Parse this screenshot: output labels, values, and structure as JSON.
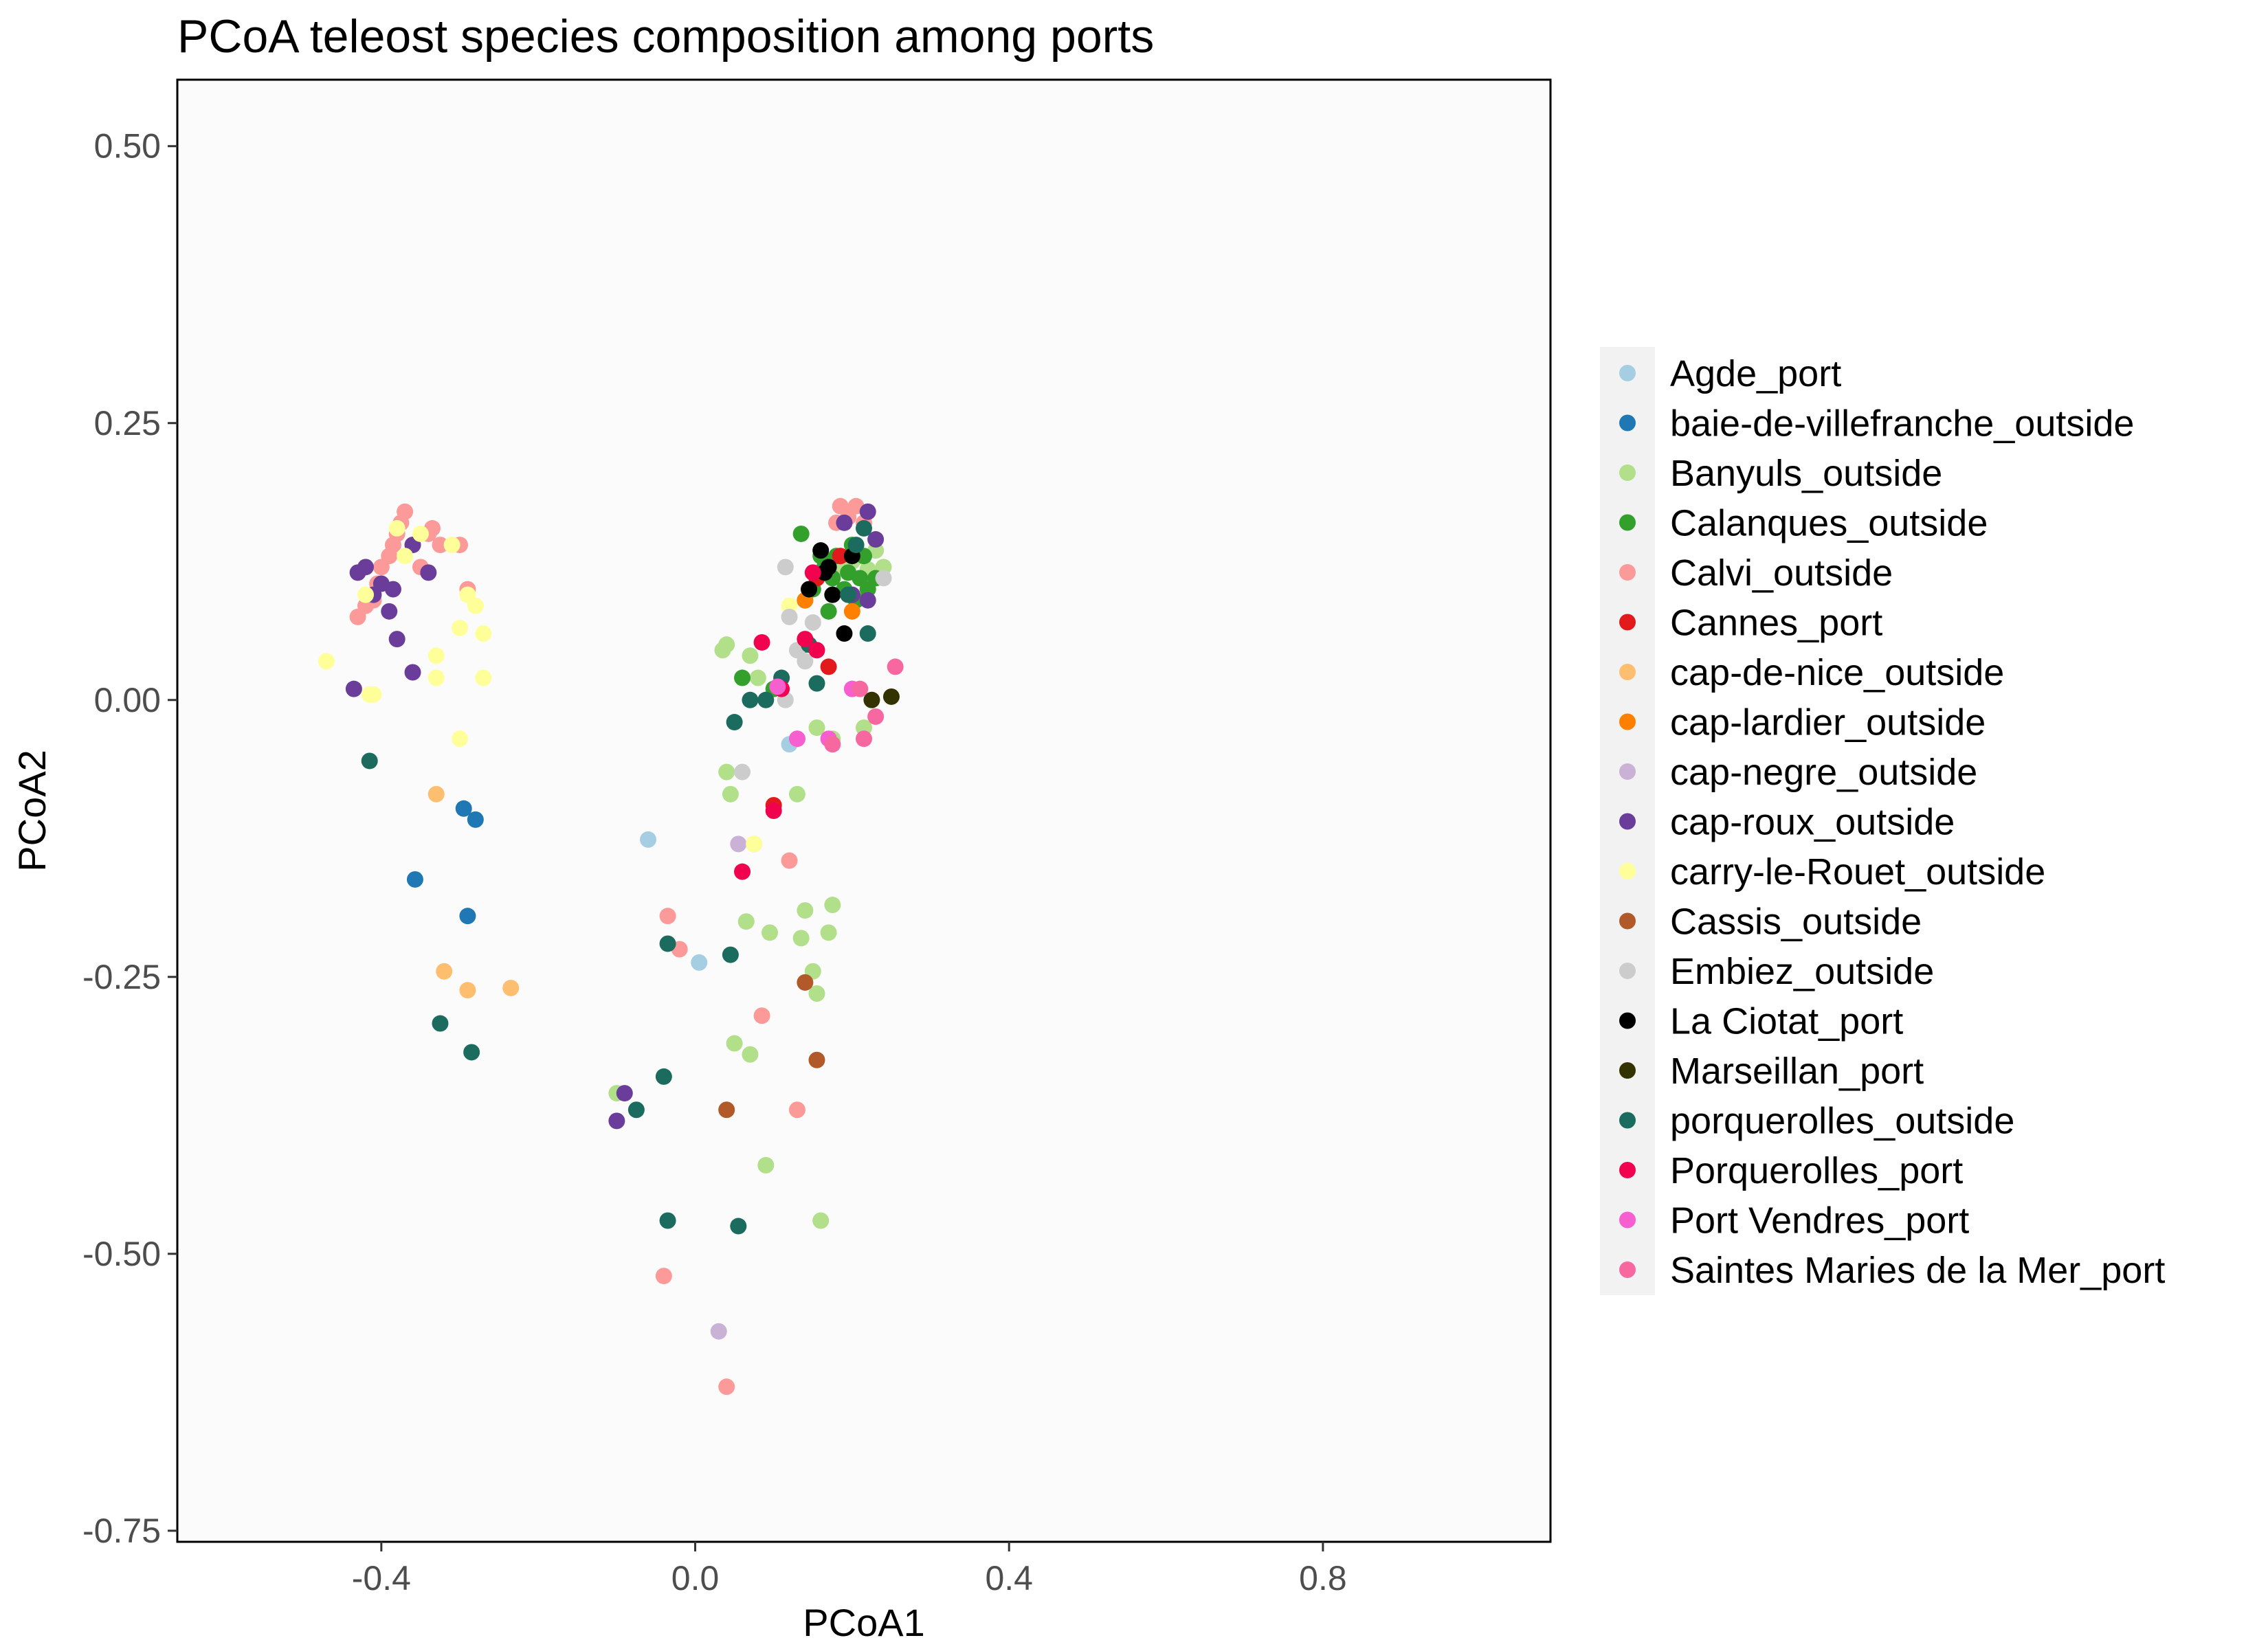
{
  "chart_data": {
    "type": "scatter",
    "title": "PCoA teleost species composition among ports",
    "xlabel": "PCoA1",
    "ylabel": "PCoA2",
    "xlim": [
      -0.66,
      1.09
    ],
    "ylim": [
      -0.76,
      0.56
    ],
    "x_ticks": [
      {
        "v": -0.4,
        "label": "-0.4"
      },
      {
        "v": 0.0,
        "label": "0.0"
      },
      {
        "v": 0.4,
        "label": "0.4"
      },
      {
        "v": 0.8,
        "label": "0.8"
      }
    ],
    "y_ticks": [
      {
        "v": 0.5,
        "label": "0.50"
      },
      {
        "v": 0.25,
        "label": "0.25"
      },
      {
        "v": 0.0,
        "label": "0.00"
      },
      {
        "v": -0.25,
        "label": "-0.25"
      },
      {
        "v": -0.5,
        "label": "-0.50"
      },
      {
        "v": -0.75,
        "label": "-0.75"
      }
    ],
    "grid": false,
    "legend_position": "right",
    "series": [
      {
        "name": "Agde_port",
        "color": "#a6cee3",
        "points": [
          [
            -0.06,
            -0.126
          ],
          [
            0.005,
            -0.237
          ],
          [
            0.12,
            -0.04
          ]
        ]
      },
      {
        "name": "baie-de-villefranche_outside",
        "color": "#1f78b4",
        "points": [
          [
            -0.357,
            -0.162
          ],
          [
            -0.295,
            -0.098
          ],
          [
            -0.28,
            -0.108
          ],
          [
            -0.29,
            -0.195
          ]
        ]
      },
      {
        "name": "Banyuls_outside",
        "color": "#b2df8a",
        "points": [
          [
            0.035,
            0.045
          ],
          [
            0.04,
            0.05
          ],
          [
            0.07,
            0.04
          ],
          [
            0.08,
            0.02
          ],
          [
            0.04,
            -0.065
          ],
          [
            0.045,
            -0.085
          ],
          [
            0.075,
            -0.13
          ],
          [
            0.065,
            -0.2
          ],
          [
            0.095,
            -0.21
          ],
          [
            0.135,
            -0.215
          ],
          [
            0.14,
            -0.19
          ],
          [
            0.15,
            -0.245
          ],
          [
            0.155,
            -0.265
          ],
          [
            0.17,
            -0.21
          ],
          [
            0.175,
            -0.185
          ],
          [
            0.13,
            -0.085
          ],
          [
            0.13,
            -0.035
          ],
          [
            0.155,
            -0.025
          ],
          [
            0.175,
            -0.035
          ],
          [
            0.215,
            -0.025
          ],
          [
            0.05,
            -0.31
          ],
          [
            0.07,
            -0.32
          ],
          [
            -0.1,
            -0.355
          ],
          [
            0.09,
            -0.42
          ],
          [
            0.16,
            -0.47
          ],
          [
            0.2,
            0.125
          ],
          [
            0.21,
            0.13
          ],
          [
            0.22,
            0.118
          ],
          [
            0.23,
            0.135
          ],
          [
            0.24,
            0.12
          ],
          [
            0.185,
            0.12
          ]
        ]
      },
      {
        "name": "Calanques_outside",
        "color": "#33a02c",
        "points": [
          [
            0.135,
            0.15
          ],
          [
            0.15,
            0.1
          ],
          [
            0.155,
            0.11
          ],
          [
            0.165,
            0.12
          ],
          [
            0.175,
            0.11
          ],
          [
            0.18,
            0.13
          ],
          [
            0.19,
            0.1
          ],
          [
            0.195,
            0.115
          ],
          [
            0.205,
            0.09
          ],
          [
            0.21,
            0.11
          ],
          [
            0.215,
            0.13
          ],
          [
            0.22,
            0.1
          ],
          [
            0.2,
            0.14
          ],
          [
            0.16,
            0.13
          ],
          [
            0.14,
            0.09
          ],
          [
            0.17,
            0.08
          ],
          [
            0.06,
            0.02
          ],
          [
            0.1,
            0.01
          ],
          [
            0.14,
            0.05
          ],
          [
            0.23,
            0.11
          ]
        ]
      },
      {
        "name": "Calvi_outside",
        "color": "#fb9a99",
        "points": [
          [
            -0.39,
            0.13
          ],
          [
            -0.385,
            0.14
          ],
          [
            -0.38,
            0.15
          ],
          [
            -0.375,
            0.16
          ],
          [
            -0.37,
            0.17
          ],
          [
            -0.36,
            0.14
          ],
          [
            -0.35,
            0.12
          ],
          [
            -0.34,
            0.15
          ],
          [
            -0.4,
            0.12
          ],
          [
            -0.405,
            0.105
          ],
          [
            -0.41,
            0.09
          ],
          [
            -0.42,
            0.085
          ],
          [
            -0.43,
            0.075
          ],
          [
            -0.335,
            0.155
          ],
          [
            -0.325,
            0.14
          ],
          [
            -0.29,
            0.1
          ],
          [
            -0.3,
            0.14
          ],
          [
            -0.035,
            -0.195
          ],
          [
            -0.02,
            -0.225
          ],
          [
            -0.04,
            -0.52
          ],
          [
            0.04,
            -0.62
          ],
          [
            0.085,
            -0.285
          ],
          [
            0.12,
            -0.145
          ],
          [
            0.13,
            -0.37
          ],
          [
            0.185,
            0.175
          ],
          [
            0.195,
            0.165
          ],
          [
            0.205,
            0.175
          ],
          [
            0.215,
            0.16
          ],
          [
            0.18,
            0.16
          ]
        ]
      },
      {
        "name": "Cannes_port",
        "color": "#e31a1c",
        "points": [
          [
            0.1,
            -0.095
          ],
          [
            0.145,
            0.1
          ],
          [
            0.155,
            0.11
          ],
          [
            0.17,
            0.03
          ],
          [
            0.185,
            0.13
          ]
        ]
      },
      {
        "name": "cap-de-nice_outside",
        "color": "#fdbf6f",
        "points": [
          [
            -0.33,
            -0.085
          ],
          [
            -0.32,
            -0.245
          ],
          [
            -0.29,
            -0.262
          ],
          [
            -0.235,
            -0.26
          ]
        ]
      },
      {
        "name": "cap-lardier_outside",
        "color": "#ff7f00",
        "points": [
          [
            0.14,
            0.09
          ],
          [
            0.2,
            0.08
          ]
        ]
      },
      {
        "name": "cap-negre_outside",
        "color": "#cab2d6",
        "points": [
          [
            0.055,
            -0.13
          ],
          [
            0.03,
            -0.57
          ]
        ]
      },
      {
        "name": "cap-roux_outside",
        "color": "#6a3d9a",
        "points": [
          [
            -0.43,
            0.115
          ],
          [
            -0.42,
            0.12
          ],
          [
            -0.41,
            0.095
          ],
          [
            -0.4,
            0.105
          ],
          [
            -0.39,
            0.08
          ],
          [
            -0.385,
            0.1
          ],
          [
            -0.36,
            0.14
          ],
          [
            -0.34,
            0.115
          ],
          [
            -0.38,
            0.055
          ],
          [
            -0.36,
            0.025
          ],
          [
            -0.435,
            0.01
          ],
          [
            -0.1,
            -0.38
          ],
          [
            -0.09,
            -0.355
          ],
          [
            0.2,
            0.095
          ],
          [
            0.22,
            0.17
          ],
          [
            0.23,
            0.145
          ],
          [
            0.19,
            0.16
          ],
          [
            0.22,
            0.09
          ]
        ]
      },
      {
        "name": "carry-le-Rouet_outside",
        "color": "#ffff99",
        "points": [
          [
            -0.47,
            0.035
          ],
          [
            -0.42,
            0.095
          ],
          [
            -0.415,
            0.005
          ],
          [
            -0.41,
            0.005
          ],
          [
            -0.38,
            0.155
          ],
          [
            -0.37,
            0.13
          ],
          [
            -0.35,
            0.15
          ],
          [
            -0.33,
            0.04
          ],
          [
            -0.33,
            0.02
          ],
          [
            -0.31,
            0.14
          ],
          [
            -0.3,
            0.065
          ],
          [
            -0.29,
            0.095
          ],
          [
            -0.28,
            0.085
          ],
          [
            -0.27,
            0.06
          ],
          [
            -0.27,
            0.02
          ],
          [
            -0.3,
            -0.035
          ],
          [
            0.075,
            -0.13
          ],
          [
            0.12,
            0.085
          ]
        ]
      },
      {
        "name": "Cassis_outside",
        "color": "#b15928",
        "points": [
          [
            0.04,
            -0.37
          ],
          [
            0.14,
            -0.255
          ],
          [
            0.155,
            -0.325
          ]
        ]
      },
      {
        "name": "Embiez_outside",
        "color": "#cccccc",
        "points": [
          [
            0.115,
            0.12
          ],
          [
            0.12,
            0.075
          ],
          [
            0.13,
            0.045
          ],
          [
            0.14,
            0.035
          ],
          [
            0.115,
            0.0
          ],
          [
            0.15,
            0.07
          ],
          [
            0.06,
            -0.065
          ],
          [
            0.24,
            0.11
          ]
        ]
      },
      {
        "name": "La Ciotat_port",
        "color": "#000000",
        "points": [
          [
            0.145,
            0.1
          ],
          [
            0.16,
            0.135
          ],
          [
            0.17,
            0.12
          ],
          [
            0.175,
            0.095
          ],
          [
            0.19,
            0.06
          ],
          [
            0.2,
            0.13
          ],
          [
            0.165,
            0.115
          ]
        ]
      },
      {
        "name": "Marseillan_port",
        "color": "#333300",
        "points": [
          [
            0.225,
            0.0
          ],
          [
            0.25,
            0.003
          ]
        ]
      },
      {
        "name": "porquerolles_outside",
        "color": "#1b6b5e",
        "points": [
          [
            -0.415,
            -0.055
          ],
          [
            -0.325,
            -0.292
          ],
          [
            -0.285,
            -0.318
          ],
          [
            -0.075,
            -0.37
          ],
          [
            -0.04,
            -0.34
          ],
          [
            -0.035,
            -0.22
          ],
          [
            -0.035,
            -0.47
          ],
          [
            0.045,
            -0.23
          ],
          [
            0.05,
            -0.02
          ],
          [
            0.07,
            0.0
          ],
          [
            0.09,
            0.0
          ],
          [
            0.11,
            0.02
          ],
          [
            0.145,
            0.05
          ],
          [
            0.155,
            0.015
          ],
          [
            0.055,
            -0.475
          ],
          [
            0.205,
            0.14
          ],
          [
            0.215,
            0.155
          ],
          [
            0.22,
            0.06
          ],
          [
            0.195,
            0.095
          ]
        ]
      },
      {
        "name": "Porquerolles_port",
        "color": "#f0024f",
        "points": [
          [
            0.085,
            0.052
          ],
          [
            0.1,
            -0.1
          ],
          [
            0.11,
            0.01
          ],
          [
            0.14,
            0.055
          ],
          [
            0.15,
            0.115
          ],
          [
            0.06,
            -0.155
          ],
          [
            0.155,
            0.045
          ]
        ]
      },
      {
        "name": "Port Vendres_port",
        "color": "#f75ed0",
        "points": [
          [
            0.105,
            0.012
          ],
          [
            0.13,
            -0.035
          ],
          [
            0.17,
            -0.035
          ],
          [
            0.2,
            0.01
          ]
        ]
      },
      {
        "name": "Saintes Maries de la Mer_port",
        "color": "#f768a1",
        "points": [
          [
            0.175,
            -0.04
          ],
          [
            0.215,
            -0.035
          ],
          [
            0.23,
            -0.015
          ],
          [
            0.255,
            0.03
          ],
          [
            0.21,
            0.01
          ]
        ]
      }
    ]
  }
}
